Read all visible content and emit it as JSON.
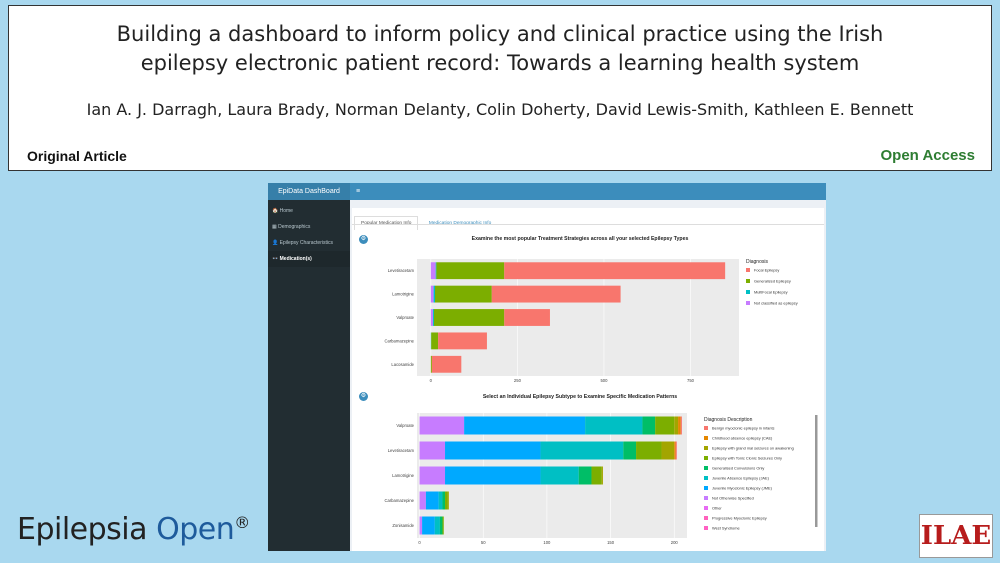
{
  "article": {
    "title_line1": "Building a dashboard to inform policy and clinical practice using the Irish",
    "title_line2": "epilepsy electronic patient record: Towards a learning health system",
    "authors": "Ian A. J. Darragh, Laura Brady, Norman Delanty, Colin Doherty, David Lewis-Smith, Kathleen E. Bennett",
    "type_label": "Original Article",
    "access_label": "Open Access"
  },
  "journal": {
    "name_part1": "Epilepsia",
    "name_part2": "Open",
    "mark": "®",
    "logo_text": "ILAE"
  },
  "app": {
    "brand": "EpiData DashBoard",
    "menu_icon": "hamburger-icon",
    "nav": [
      {
        "icon": "home-icon",
        "glyph": "🏠",
        "label": "Home"
      },
      {
        "icon": "dashboard-icon",
        "glyph": "▦",
        "label": "Demographics"
      },
      {
        "icon": "user-icon",
        "glyph": "👤",
        "label": "Epilepsy Characteristics"
      },
      {
        "icon": "pills-icon",
        "glyph": "👓",
        "label": "Medication(s)"
      }
    ],
    "tabs": [
      "Popular Medication Info",
      "Medication Demographic Info"
    ],
    "gear_icon": "gear-icon"
  },
  "chart_data": [
    {
      "type": "bar",
      "orientation": "horizontal",
      "stacked": true,
      "title": "Examine the most popular Treatment Strategies across all your selected Epilepsy Types",
      "categories": [
        "Levetiracetam",
        "Lamotrigine",
        "Valproate",
        "Carbamazepine",
        "Lacosamide"
      ],
      "legend_title": "Diagnosis",
      "series": [
        {
          "name": "Not classified as epilepsy",
          "color": "#c77cff",
          "values": [
            14,
            8,
            6,
            0,
            0
          ]
        },
        {
          "name": "MultiFocal Epilepsy",
          "color": "#00bfc4",
          "values": [
            2,
            4,
            3,
            1,
            0
          ]
        },
        {
          "name": "Generalized Epilepsy",
          "color": "#7cae00",
          "values": [
            196,
            164,
            203,
            20,
            3
          ]
        },
        {
          "name": "Focal Epilepsy",
          "color": "#f8766d",
          "values": [
            638,
            372,
            132,
            141,
            85
          ]
        }
      ],
      "legend_order": [
        "Focal Epilepsy",
        "Generalized Epilepsy",
        "MultiFocal Epilepsy",
        "Not classified as epilepsy"
      ],
      "xlim": [
        -40,
        890
      ],
      "xticks": [
        0,
        250,
        500,
        750
      ]
    },
    {
      "type": "bar",
      "orientation": "horizontal",
      "stacked": true,
      "title": "Select an Individual Epilepsy Subtype to Examine Specific Medication Patterns",
      "categories": [
        "Valproate",
        "Levetiracetam",
        "Lamotrigine",
        "Carbamazepine",
        "Zonisamide"
      ],
      "legend_title": "Diagnosis Description",
      "series": [
        {
          "name": "Not Otherwise Specified",
          "color": "#c77cff",
          "values": [
            35,
            20,
            20,
            5,
            2
          ]
        },
        {
          "name": "Juvenile Myoclonic Epilepsy (JME)",
          "color": "#00a9ff",
          "values": [
            95,
            75,
            75,
            10,
            10
          ]
        },
        {
          "name": "Juvenile Absence Epilepsy (JAE)",
          "color": "#00bfc4",
          "values": [
            45,
            65,
            30,
            3,
            4
          ]
        },
        {
          "name": "Generalised Convulsions Only",
          "color": "#00be67",
          "values": [
            10,
            10,
            10,
            2,
            2
          ]
        },
        {
          "name": "Epilepsy with Tonic Clonic Seizures Only",
          "color": "#7cae00",
          "values": [
            15,
            20,
            8,
            2,
            1
          ]
        },
        {
          "name": "Epilepsy with grand mal seizures on awakening",
          "color": "#a3a500",
          "values": [
            3,
            10,
            1,
            1,
            0
          ]
        },
        {
          "name": "Childhood absence epilepsy (CAE)",
          "color": "#e58700",
          "values": [
            2,
            1,
            0,
            0,
            0
          ]
        },
        {
          "name": "Benign myoclonic epilepsy in infants",
          "color": "#f8766d",
          "values": [
            1,
            1,
            0,
            0,
            0
          ]
        }
      ],
      "legend_order": [
        "Benign myoclonic epilepsy in infants",
        "Childhood absence epilepsy (CAE)",
        "Epilepsy with grand mal seizures on awakening",
        "Epilepsy with Tonic Clonic Seizures Only",
        "Generalised Convulsions Only",
        "Juvenile Absence Epilepsy (JAE)",
        "Juvenile Myoclonic Epilepsy (JME)",
        "Not Otherwise Specified",
        "Other",
        "Progressive Myoclonic Epilepsy",
        "West Syndrome"
      ],
      "legend_colors": [
        "#f8766d",
        "#e58700",
        "#a3a500",
        "#7cae00",
        "#00be67",
        "#00bfc4",
        "#00a9ff",
        "#c77cff",
        "#e76bf3",
        "#ff62bc",
        "#ff61c3"
      ],
      "xlim": [
        -2,
        210
      ],
      "xticks": [
        0,
        50,
        100,
        150,
        200
      ]
    }
  ]
}
